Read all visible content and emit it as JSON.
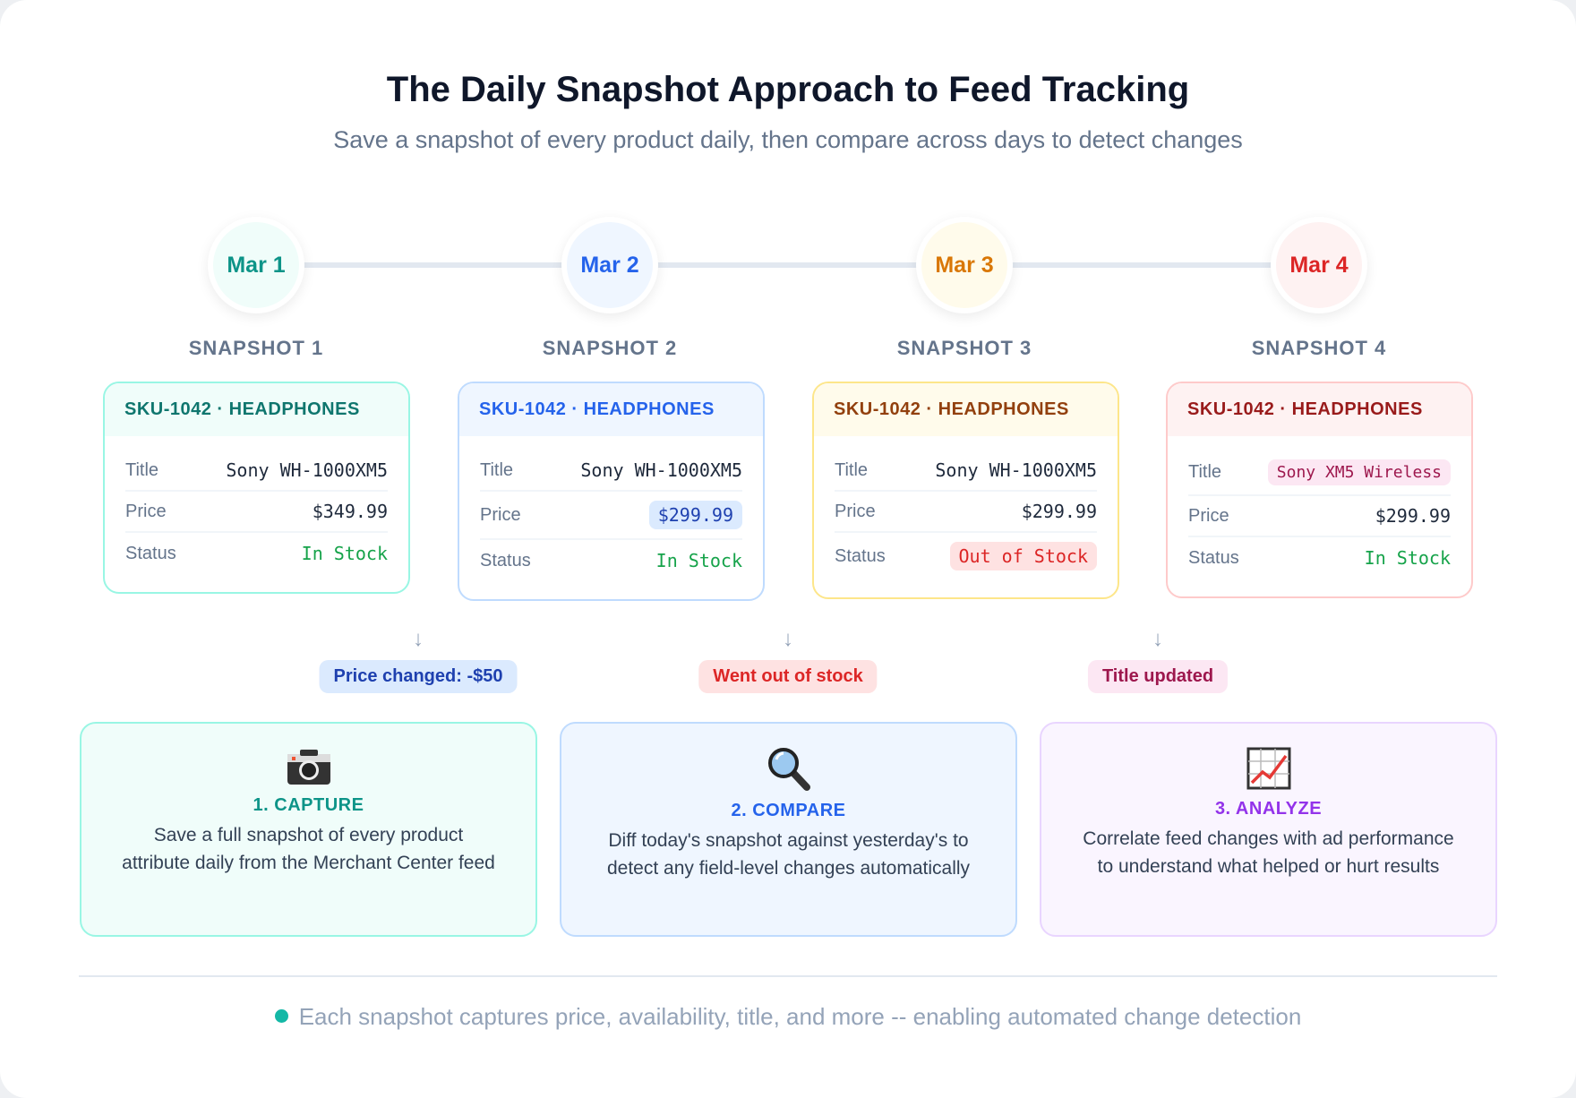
{
  "header": {
    "title": "The Daily Snapshot Approach to Feed Tracking",
    "subtitle": "Save a snapshot of every product daily, then compare across days to detect changes"
  },
  "snapshots": [
    {
      "date": "Mar 1",
      "label": "SNAPSHOT 1",
      "sku": "SKU-1042 · HEADPHONES",
      "title_label": "Title",
      "title": "Sony WH-1000XM5",
      "price_label": "Price",
      "price": "$349.99",
      "status_label": "Status",
      "status": "In Stock",
      "color": "#0d9488"
    },
    {
      "date": "Mar 2",
      "label": "SNAPSHOT 2",
      "sku": "SKU-1042 · HEADPHONES",
      "title_label": "Title",
      "title": "Sony WH-1000XM5",
      "price_label": "Price",
      "price": "$299.99",
      "status_label": "Status",
      "status": "In Stock",
      "color": "#2563eb"
    },
    {
      "date": "Mar 3",
      "label": "SNAPSHOT 3",
      "sku": "SKU-1042 · HEADPHONES",
      "title_label": "Title",
      "title": "Sony WH-1000XM5",
      "price_label": "Price",
      "price": "$299.99",
      "status_label": "Status",
      "status": "Out of Stock",
      "color": "#d97706"
    },
    {
      "date": "Mar 4",
      "label": "SNAPSHOT 4",
      "sku": "SKU-1042 · HEADPHONES",
      "title_label": "Title",
      "title": "Sony XM5 Wireless",
      "price_label": "Price",
      "price": "$299.99",
      "status_label": "Status",
      "status": "In Stock",
      "color": "#dc2626"
    }
  ],
  "changes": [
    "Price changed: -$50",
    "Went out of stock",
    "Title updated"
  ],
  "steps": [
    {
      "icon": "camera-icon",
      "title": "1. CAPTURE",
      "desc": "Save a full snapshot of every product attribute daily from the Merchant Center feed"
    },
    {
      "icon": "magnifier-icon",
      "title": "2. COMPARE",
      "desc": "Diff today's snapshot against yesterday's to detect any field-level changes automatically"
    },
    {
      "icon": "chart-increasing-icon",
      "title": "3. ANALYZE",
      "desc": "Correlate feed changes with ad performance to understand what helped or hurt results"
    }
  ],
  "footer": "Each snapshot captures price, availability, title, and more -- enabling automated change detection"
}
